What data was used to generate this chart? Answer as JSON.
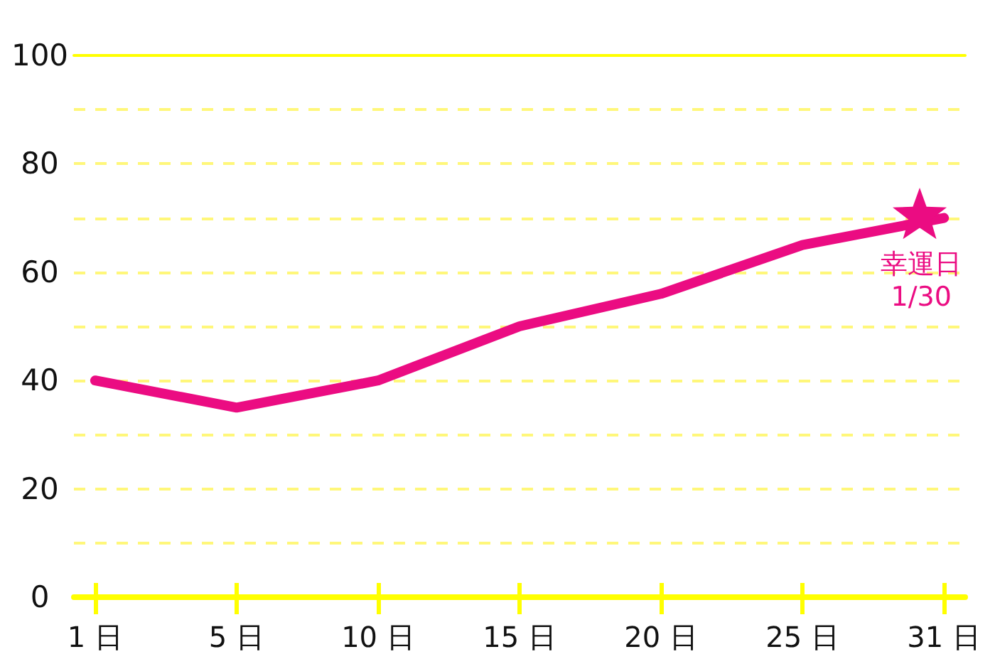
{
  "chart_data": {
    "type": "line",
    "categories": [
      "1 日",
      "5 日",
      "10 日",
      "15 日",
      "20 日",
      "25 日",
      "31 日"
    ],
    "values": [
      40,
      35,
      40,
      50,
      56,
      65,
      70
    ],
    "color": "#eb0c82",
    "ylim": [
      0,
      100
    ],
    "yticks": [
      0,
      {
        "value": 10,
        "label": null
      },
      20,
      {
        "value": 30,
        "label": null
      },
      40,
      {
        "value": 50,
        "label": null
      },
      60,
      {
        "value": 70,
        "label": null
      },
      80,
      {
        "value": 90,
        "label": null
      },
      100
    ],
    "grid": "y",
    "marker": "none",
    "annotations": [
      {
        "text": "幸運日\n1/30",
        "x": "31 日",
        "y": 70
      }
    ]
  }
}
